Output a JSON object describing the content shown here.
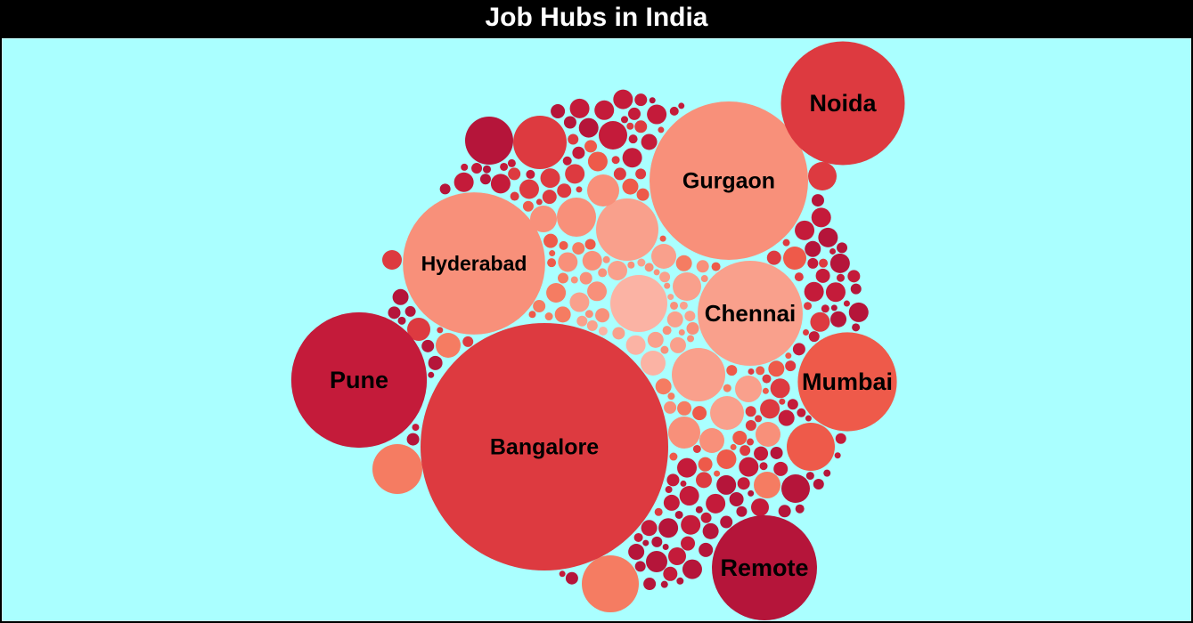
{
  "title": "Job Hubs in India",
  "colors": {
    "background": "#aaffff",
    "title_bar": "#000000",
    "title_text": "#ffffff",
    "palette": [
      "#b5153a",
      "#c41b3a",
      "#dd3a40",
      "#ee5a4a",
      "#f57c62",
      "#f8907a",
      "#f9a08c",
      "#fbb3a4"
    ]
  },
  "chart_data": {
    "type": "bubble",
    "title": "Job Hubs in India",
    "legend": "none",
    "grid": false,
    "labeled_bubbles": [
      {
        "name": "Bangalore",
        "relative_size": 1.0,
        "color": "#dd3a40"
      },
      {
        "name": "Gurgaon",
        "relative_size": 0.41,
        "color": "#f8907a"
      },
      {
        "name": "Hyderabad",
        "relative_size": 0.33,
        "color": "#f8907a"
      },
      {
        "name": "Pune",
        "relative_size": 0.3,
        "color": "#c41b3a"
      },
      {
        "name": "Noida",
        "relative_size": 0.25,
        "color": "#dd3a40"
      },
      {
        "name": "Remote",
        "relative_size": 0.18,
        "color": "#b5153a"
      },
      {
        "name": "Chennai",
        "relative_size": 0.18,
        "color": "#f9a08c"
      },
      {
        "name": "Mumbai",
        "relative_size": 0.16,
        "color": "#ee5a4a"
      }
    ]
  }
}
